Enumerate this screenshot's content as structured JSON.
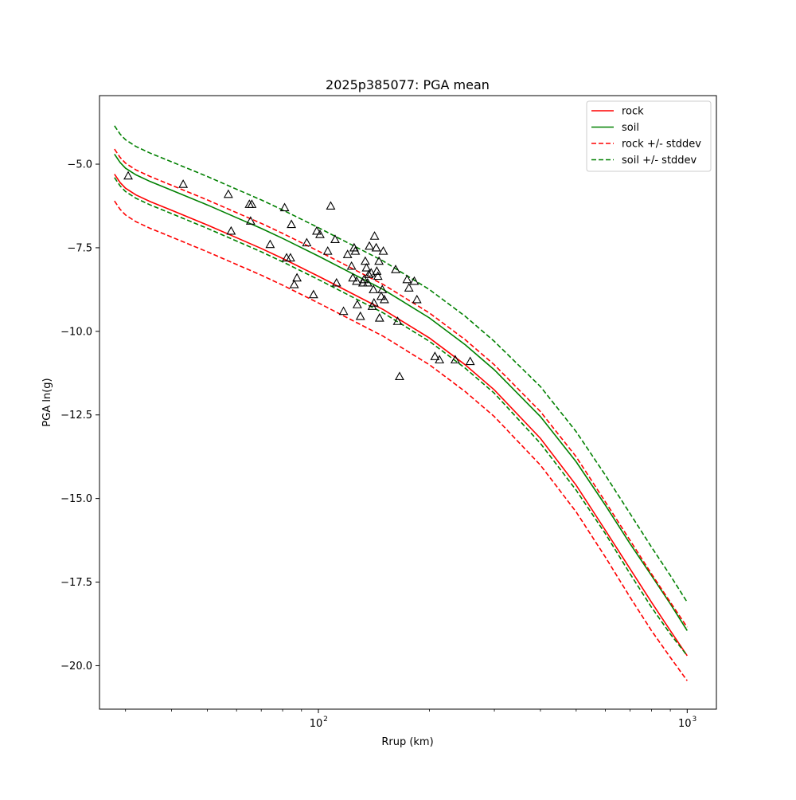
{
  "chart_data": {
    "type": "line",
    "title": "2025p385077: PGA mean",
    "xlabel": "Rrup (km)",
    "ylabel": "PGA ln(g)",
    "xscale": "log",
    "xlim": [
      25.5,
      1200
    ],
    "ylim": [
      -21.3,
      -2.95
    ],
    "x_tick_labels": [
      {
        "value": 100,
        "label": "10",
        "exponent": "2"
      },
      {
        "value": 1000,
        "label": "10",
        "exponent": "3"
      }
    ],
    "y_ticks": [
      {
        "value": -5.0,
        "label": "−5.0"
      },
      {
        "value": -7.5,
        "label": "−7.5"
      },
      {
        "value": -10.0,
        "label": "−10.0"
      },
      {
        "value": -12.5,
        "label": "−12.5"
      },
      {
        "value": -15.0,
        "label": "−15.0"
      },
      {
        "value": -17.5,
        "label": "−17.5"
      },
      {
        "value": -20.0,
        "label": "−20.0"
      }
    ],
    "grid": false,
    "legend_position": "top-right",
    "x": [
      28,
      29,
      30,
      32,
      35,
      40,
      50,
      60,
      70,
      80,
      100,
      120,
      150,
      200,
      250,
      300,
      400,
      500,
      600,
      700,
      800,
      900,
      1000
    ],
    "series": [
      {
        "name": "rock",
        "color": "#ff0000",
        "dash": "solid",
        "values": [
          -5.3,
          -5.55,
          -5.72,
          -5.92,
          -6.12,
          -6.38,
          -6.82,
          -7.2,
          -7.52,
          -7.82,
          -8.35,
          -8.8,
          -9.35,
          -10.2,
          -11.0,
          -11.75,
          -13.2,
          -14.6,
          -15.95,
          -17.1,
          -18.1,
          -18.95,
          -19.7
        ]
      },
      {
        "name": "soil",
        "color": "#008000",
        "dash": "solid",
        "values": [
          -4.7,
          -4.95,
          -5.12,
          -5.32,
          -5.52,
          -5.78,
          -6.22,
          -6.6,
          -6.92,
          -7.22,
          -7.75,
          -8.2,
          -8.75,
          -9.6,
          -10.4,
          -11.15,
          -12.55,
          -13.9,
          -15.2,
          -16.35,
          -17.3,
          -18.15,
          -18.95
        ]
      },
      {
        "name": "rock +/- stddev",
        "color": "#ff0000",
        "dash": "dashed",
        "values": [
          -4.55,
          -4.8,
          -4.97,
          -5.17,
          -5.37,
          -5.63,
          -6.07,
          -6.45,
          -6.77,
          -7.07,
          -7.6,
          -8.05,
          -8.6,
          -9.45,
          -10.25,
          -11.0,
          -12.4,
          -13.75,
          -15.1,
          -16.25,
          -17.25,
          -18.1,
          -18.85
        ]
      },
      {
        "name": "",
        "color": "#ff0000",
        "dash": "dashed",
        "values": [
          -6.1,
          -6.35,
          -6.52,
          -6.72,
          -6.92,
          -7.18,
          -7.62,
          -8.0,
          -8.32,
          -8.62,
          -9.15,
          -9.6,
          -10.15,
          -11.0,
          -11.8,
          -12.55,
          -14.0,
          -15.4,
          -16.75,
          -17.95,
          -18.95,
          -19.75,
          -20.45
        ]
      },
      {
        "name": "soil +/- stddev",
        "color": "#008000",
        "dash": "dashed",
        "values": [
          -3.85,
          -4.1,
          -4.27,
          -4.47,
          -4.67,
          -4.93,
          -5.37,
          -5.75,
          -6.07,
          -6.37,
          -6.9,
          -7.35,
          -7.9,
          -8.75,
          -9.55,
          -10.3,
          -11.65,
          -13.0,
          -14.3,
          -15.45,
          -16.45,
          -17.3,
          -18.1
        ]
      },
      {
        "name": "",
        "color": "#008000",
        "dash": "dashed",
        "values": [
          -5.4,
          -5.65,
          -5.82,
          -6.02,
          -6.22,
          -6.48,
          -6.92,
          -7.3,
          -7.62,
          -7.92,
          -8.45,
          -8.9,
          -9.45,
          -10.3,
          -11.1,
          -11.85,
          -13.35,
          -14.75,
          -16.05,
          -17.25,
          -18.25,
          -19.05,
          -19.7
        ]
      }
    ],
    "observations": {
      "marker": "triangle-open",
      "color": "#000000",
      "points": [
        [
          30.5,
          -5.35
        ],
        [
          43,
          -5.6
        ],
        [
          57,
          -5.9
        ],
        [
          58,
          -7.0
        ],
        [
          65,
          -6.2
        ],
        [
          65.5,
          -6.7
        ],
        [
          66,
          -6.2
        ],
        [
          74,
          -7.4
        ],
        [
          81,
          -6.3
        ],
        [
          82,
          -7.8
        ],
        [
          84,
          -7.8
        ],
        [
          84.5,
          -6.8
        ],
        [
          86,
          -8.6
        ],
        [
          87.5,
          -8.4
        ],
        [
          93,
          -7.35
        ],
        [
          97,
          -8.9
        ],
        [
          99,
          -7.0
        ],
        [
          101,
          -7.1
        ],
        [
          106,
          -7.6
        ],
        [
          108,
          -6.25
        ],
        [
          111,
          -7.25
        ],
        [
          112,
          -8.55
        ],
        [
          117,
          -9.4
        ],
        [
          120,
          -7.7
        ],
        [
          123,
          -8.05
        ],
        [
          124,
          -8.4
        ],
        [
          125,
          -7.5
        ],
        [
          126,
          -7.6
        ],
        [
          127,
          -8.5
        ],
        [
          127.5,
          -9.2
        ],
        [
          130,
          -9.55
        ],
        [
          132,
          -8.55
        ],
        [
          133,
          -8.45
        ],
        [
          134,
          -7.9
        ],
        [
          135,
          -8.1
        ],
        [
          136,
          -8.55
        ],
        [
          137,
          -8.3
        ],
        [
          137.5,
          -7.45
        ],
        [
          139,
          -8.25
        ],
        [
          140,
          -9.25
        ],
        [
          141,
          -8.75
        ],
        [
          141.5,
          -9.15
        ],
        [
          142,
          -7.15
        ],
        [
          143.5,
          -7.5
        ],
        [
          144,
          -8.2
        ],
        [
          145,
          -8.35
        ],
        [
          146,
          -7.9
        ],
        [
          146.5,
          -9.6
        ],
        [
          148,
          -8.95
        ],
        [
          149,
          -8.75
        ],
        [
          150,
          -7.6
        ],
        [
          151,
          -9.05
        ],
        [
          162,
          -8.15
        ],
        [
          164,
          -9.7
        ],
        [
          166,
          -11.35
        ],
        [
          174,
          -8.45
        ],
        [
          176,
          -8.7
        ],
        [
          182,
          -8.5
        ],
        [
          185,
          -9.05
        ],
        [
          207,
          -10.75
        ],
        [
          213,
          -10.85
        ],
        [
          235,
          -10.85
        ],
        [
          258,
          -10.9
        ]
      ]
    }
  }
}
